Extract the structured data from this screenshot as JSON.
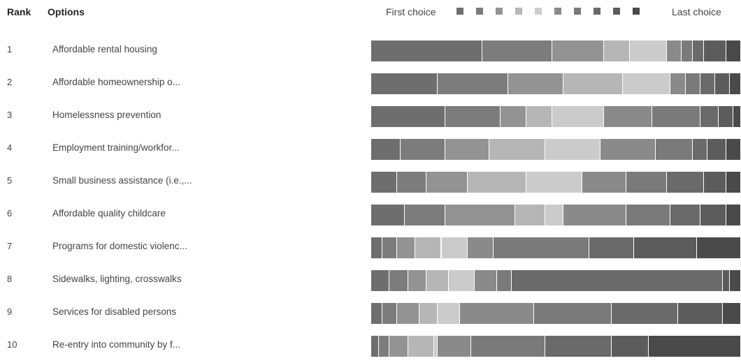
{
  "headers": {
    "rank": "Rank",
    "options": "Options"
  },
  "legend": {
    "first_label": "First choice",
    "last_label": "Last choice",
    "colors": [
      "#6e6e6e",
      "#7c7c7c",
      "#939393",
      "#b6b6b6",
      "#cbcbcb",
      "#8a8a8a",
      "#7a7a7a",
      "#6a6a6a",
      "#5c5c5c",
      "#4a4a4a"
    ]
  },
  "chart_data": {
    "type": "bar",
    "stacked": true,
    "orientation": "horizontal",
    "categories": [
      "Affordable rental housing",
      "Affordable homeownership o...",
      "Homelessness prevention",
      "Employment training/workfor...",
      "Small business assistance (i.e.,...",
      "Affordable quality childcare",
      "Programs for domestic violenc...",
      "Sidewalks, lighting, crosswalks",
      "Services for disabled persons",
      "Re-entry into community by f..."
    ],
    "ranks": [
      "1",
      "2",
      "3",
      "4",
      "5",
      "6",
      "7",
      "8",
      "9",
      "10"
    ],
    "series": [
      {
        "values": [
          30,
          18,
          20,
          8,
          7,
          9,
          3,
          5,
          3,
          2
        ]
      },
      {
        "values": [
          19,
          19,
          15,
          12,
          8,
          11,
          4,
          5,
          4,
          3
        ]
      },
      {
        "values": [
          14,
          15,
          7,
          12,
          11,
          19,
          5,
          5,
          6,
          5
        ]
      },
      {
        "values": [
          7,
          16,
          7,
          15,
          16,
          8,
          7,
          6,
          5,
          7
        ]
      },
      {
        "values": [
          10,
          13,
          14,
          15,
          15,
          5,
          7,
          7,
          6,
          1
        ]
      },
      {
        "values": [
          4,
          4,
          13,
          15,
          12,
          17,
          7,
          6,
          20,
          9
        ]
      },
      {
        "values": [
          3,
          4,
          13,
          10,
          11,
          12,
          26,
          4,
          21,
          20
        ]
      },
      {
        "values": [
          3,
          4,
          5,
          4,
          10,
          8,
          12,
          57,
          18,
          18
        ]
      },
      {
        "values": [
          6,
          4,
          4,
          5,
          6,
          7,
          17,
          2,
          12,
          10
        ]
      },
      {
        "values": [
          4,
          3,
          2,
          4,
          4,
          4,
          12,
          3,
          5,
          25
        ]
      }
    ]
  }
}
